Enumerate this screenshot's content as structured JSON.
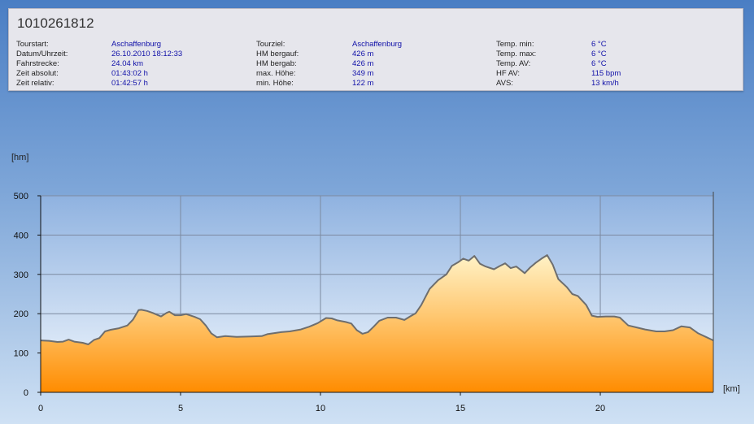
{
  "header": {
    "title": "1010261812",
    "columns": [
      [
        {
          "label": "Tourstart:",
          "value": "Aschaffenburg"
        },
        {
          "label": "Datum/Uhrzeit:",
          "value": "26.10.2010 18:12:33"
        },
        {
          "label": "Fahrstrecke:",
          "value": "24.04 km"
        },
        {
          "label": "Zeit absolut:",
          "value": "01:43:02 h"
        },
        {
          "label": "Zeit relativ:",
          "value": "01:42:57 h"
        }
      ],
      [
        {
          "label": "Tourziel:",
          "value": "Aschaffenburg"
        },
        {
          "label": "HM bergauf:",
          "value": "426 m"
        },
        {
          "label": "HM bergab:",
          "value": "426 m"
        },
        {
          "label": "max. Höhe:",
          "value": "349 m"
        },
        {
          "label": "min. Höhe:",
          "value": "122 m"
        }
      ],
      [
        {
          "label": "Temp. min:",
          "value": "6 °C"
        },
        {
          "label": "Temp. max:",
          "value": "6 °C"
        },
        {
          "label": "Temp. AV:",
          "value": "6 °C"
        },
        {
          "label": "HF AV:",
          "value": "115 bpm"
        },
        {
          "label": "AVS:",
          "value": "13 km/h"
        }
      ]
    ]
  },
  "chart_data": {
    "type": "area",
    "xlabel": "[km]",
    "ylabel": "[hm]",
    "xlim": [
      0,
      24.04
    ],
    "ylim": [
      0,
      500
    ],
    "xticks": [
      0,
      5,
      10,
      15,
      20
    ],
    "yticks": [
      0,
      100,
      200,
      300,
      400,
      500
    ],
    "grid": true,
    "colors": {
      "line": "#6e6e6e",
      "fill_top": "#fff3c8",
      "fill_bottom": "#ff8c00",
      "plot_top": "#8fb2e0",
      "plot_bottom": "#f2f8fe",
      "grid": "#7c8aa0"
    },
    "x": [
      0,
      0.3,
      0.6,
      0.8,
      1.0,
      1.2,
      1.5,
      1.7,
      1.9,
      2.1,
      2.3,
      2.5,
      2.8,
      3.1,
      3.3,
      3.5,
      3.6,
      3.8,
      4.0,
      4.3,
      4.5,
      4.6,
      4.8,
      5.0,
      5.2,
      5.5,
      5.7,
      5.9,
      6.1,
      6.3,
      6.6,
      7.0,
      7.5,
      7.9,
      8.1,
      8.3,
      8.6,
      8.9,
      9.3,
      9.6,
      9.9,
      10.2,
      10.4,
      10.6,
      10.9,
      11.1,
      11.3,
      11.5,
      11.7,
      11.9,
      12.1,
      12.4,
      12.7,
      13.0,
      13.2,
      13.4,
      13.6,
      13.9,
      14.2,
      14.5,
      14.7,
      14.9,
      15.1,
      15.3,
      15.5,
      15.7,
      15.9,
      16.2,
      16.4,
      16.6,
      16.8,
      17.0,
      17.3,
      17.5,
      17.7,
      17.9,
      18.1,
      18.3,
      18.5,
      18.8,
      19.0,
      19.2,
      19.5,
      19.7,
      19.9,
      20.2,
      20.5,
      20.7,
      21.0,
      21.3,
      21.6,
      22.0,
      22.3,
      22.6,
      22.9,
      23.2,
      23.5,
      23.8,
      24.04
    ],
    "values": [
      132,
      131,
      128,
      129,
      134,
      129,
      126,
      122,
      133,
      138,
      155,
      159,
      163,
      170,
      185,
      209,
      210,
      207,
      202,
      193,
      202,
      205,
      196,
      196,
      199,
      192,
      186,
      170,
      150,
      140,
      143,
      141,
      142,
      143,
      148,
      150,
      153,
      155,
      160,
      167,
      176,
      189,
      188,
      183,
      179,
      175,
      158,
      149,
      153,
      167,
      182,
      190,
      190,
      184,
      193,
      201,
      222,
      263,
      285,
      300,
      322,
      330,
      340,
      335,
      347,
      327,
      320,
      313,
      321,
      328,
      316,
      320,
      303,
      318,
      330,
      340,
      349,
      325,
      288,
      268,
      250,
      245,
      222,
      195,
      192,
      193,
      193,
      190,
      170,
      165,
      160,
      155,
      155,
      158,
      168,
      165,
      150,
      140,
      132
    ]
  }
}
